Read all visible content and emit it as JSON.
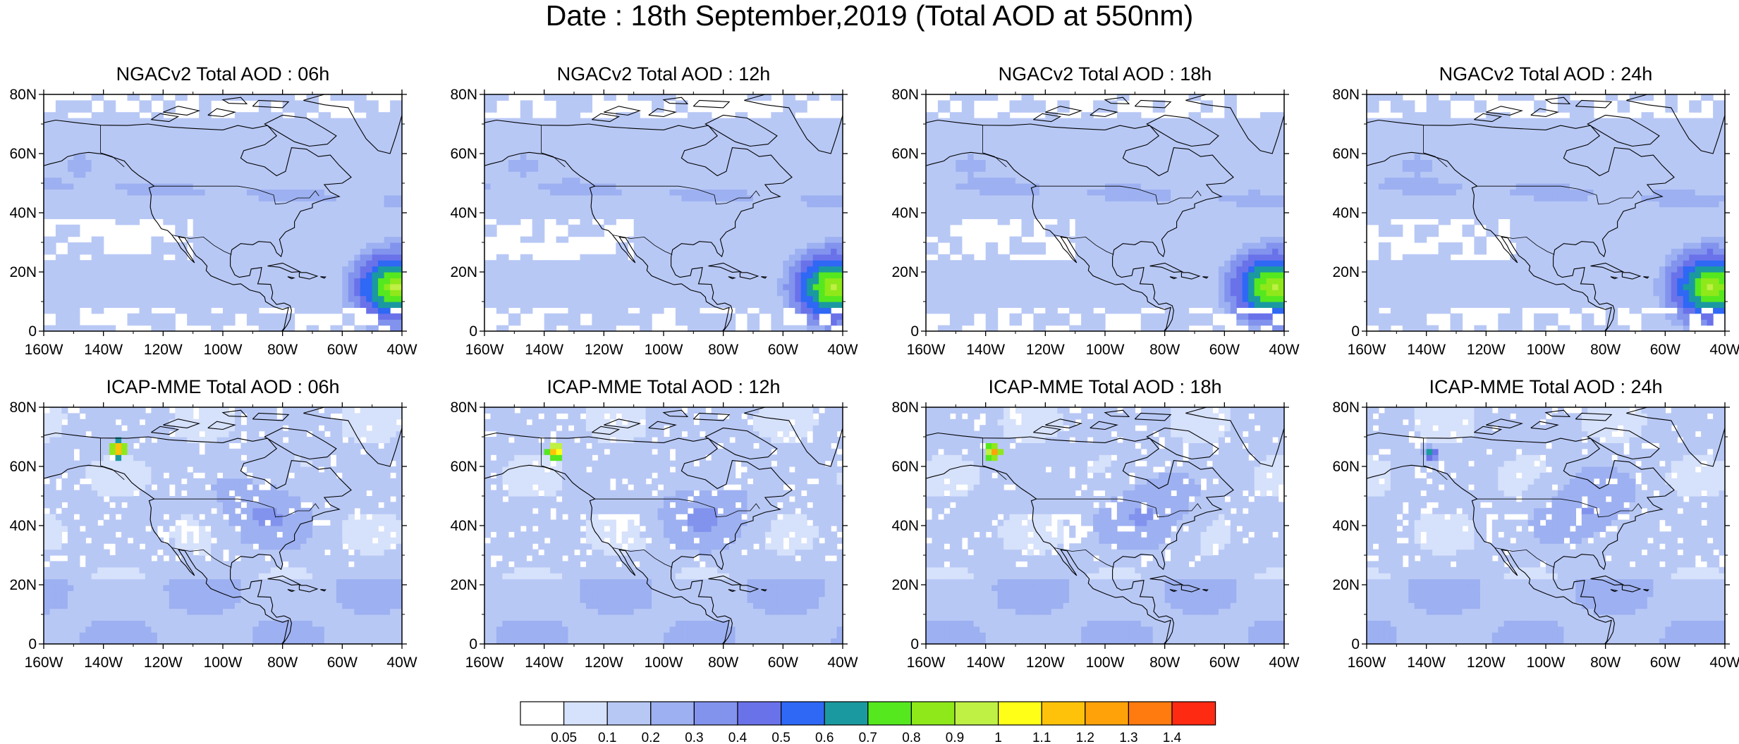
{
  "title": "Date : 18th September,2019 (Total AOD at 550nm)",
  "axes": {
    "lat_ticks": [
      "80N",
      "60N",
      "40N",
      "20N",
      "0"
    ],
    "lon_ticks": [
      "160W",
      "140W",
      "120W",
      "100W",
      "80W",
      "60W",
      "40W"
    ],
    "lat_range": [
      0,
      80
    ],
    "lon_range": [
      -160,
      -40
    ]
  },
  "panels": [
    {
      "title": "NGACv2 Total AOD : 06h",
      "model": "NGACv2",
      "hour": "06h"
    },
    {
      "title": "NGACv2 Total AOD : 12h",
      "model": "NGACv2",
      "hour": "12h"
    },
    {
      "title": "NGACv2 Total AOD : 18h",
      "model": "NGACv2",
      "hour": "18h"
    },
    {
      "title": "NGACv2 Total AOD : 24h",
      "model": "NGACv2",
      "hour": "24h"
    },
    {
      "title": "ICAP-MME Total AOD : 06h",
      "model": "ICAP-MME",
      "hour": "06h"
    },
    {
      "title": "ICAP-MME Total AOD : 12h",
      "model": "ICAP-MME",
      "hour": "12h"
    },
    {
      "title": "ICAP-MME Total AOD : 18h",
      "model": "ICAP-MME",
      "hour": "18h"
    },
    {
      "title": "ICAP-MME Total AOD : 24h",
      "model": "ICAP-MME",
      "hour": "24h"
    }
  ],
  "colorbar": {
    "colors": [
      "#ffffff",
      "#d6e1fb",
      "#b8c8f5",
      "#9db0f1",
      "#8293ee",
      "#6a72ea",
      "#2e68f5",
      "#1a9aa0",
      "#55e81f",
      "#8fe81a",
      "#bff044",
      "#ffff18",
      "#ffc20a",
      "#ffa20a",
      "#ff7a0f",
      "#ff2a12"
    ],
    "labels": [
      "0.05",
      "0.1",
      "0.2",
      "0.3",
      "0.4",
      "0.5",
      "0.6",
      "0.7",
      "0.8",
      "0.9",
      "1",
      "1.1",
      "1.2",
      "1.3",
      "1.4"
    ]
  }
}
